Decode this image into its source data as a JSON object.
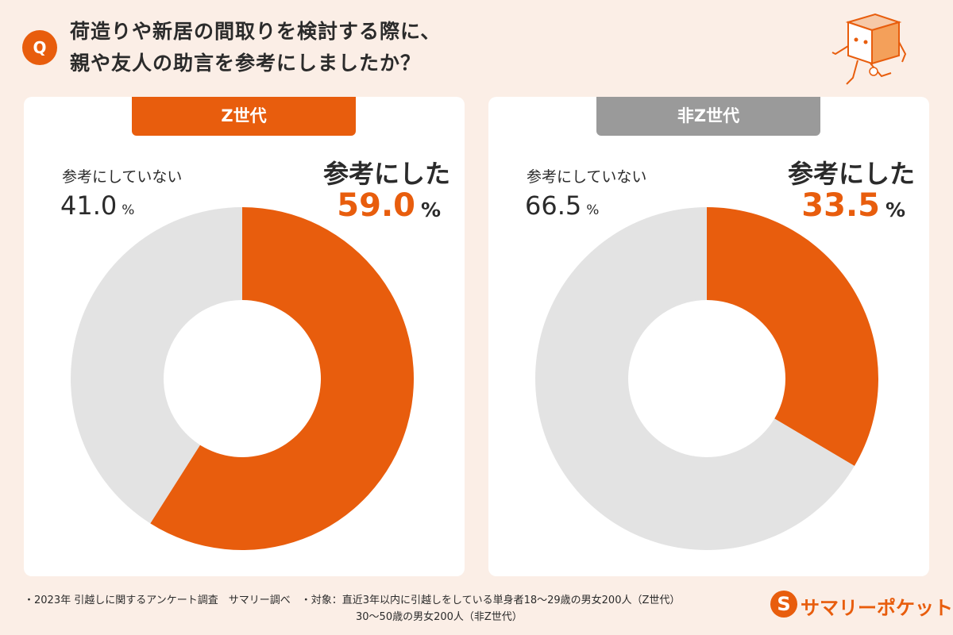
{
  "question": {
    "badge": "Q",
    "line1": "荷造りや新居の間取りを検討する際に、",
    "line2": "親や友人の助言を参考にしましたか？"
  },
  "colors": {
    "accent": "#e85d0d",
    "rest": "#e3e3e3",
    "gray_tab": "#9a9a9a"
  },
  "chart_data": [
    {
      "type": "pie",
      "title": "Z世代",
      "series": [
        {
          "name": "参考にした",
          "value": 59.0
        },
        {
          "name": "参考にしていない",
          "value": 41.0
        }
      ],
      "labels": {
        "yes_label": "参考にした",
        "yes_value": "59.0",
        "yes_pct": "%",
        "not_label": "参考にしていない",
        "not_value": "41.0",
        "not_pct": "%"
      }
    },
    {
      "type": "pie",
      "title": "非Z世代",
      "series": [
        {
          "name": "参考にした",
          "value": 33.5
        },
        {
          "name": "参考にしていない",
          "value": 66.5
        }
      ],
      "labels": {
        "yes_label": "参考にした",
        "yes_value": "33.5",
        "yes_pct": "%",
        "not_label": "参考にしていない",
        "not_value": "66.5",
        "not_pct": "%"
      }
    }
  ],
  "footnote": {
    "line1": "・2023年 引越しに関するアンケート調査　サマリー調べ　・対象：直近3年以内に引越しをしている単身者18〜29歳の男女200人（Z世代）",
    "line2": "30〜50歳の男女200人（非Z世代）"
  },
  "logo": {
    "icon": "S",
    "text": "サマリーポケット"
  }
}
